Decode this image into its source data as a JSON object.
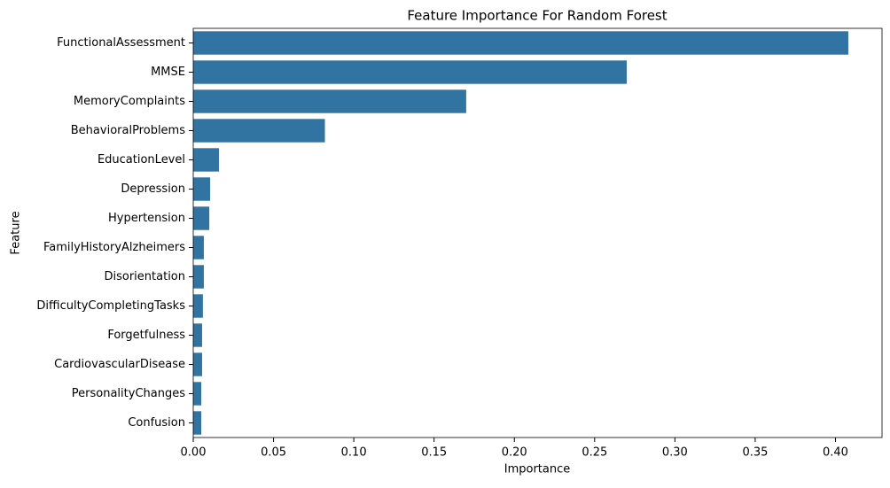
{
  "chart_data": {
    "type": "barh",
    "title": "Feature Importance For Random Forest",
    "x_label": "Importance",
    "y_label": "Feature",
    "categories": [
      "FunctionalAssessment",
      "MMSE",
      "MemoryComplaints",
      "BehavioralProblems",
      "EducationLevel",
      "Depression",
      "Hypertension",
      "FamilyHistoryAlzheimers",
      "Disorientation",
      "DifficultyCompletingTasks",
      "Forgetfulness",
      "CardiovascularDisease",
      "PersonalityChanges",
      "Confusion"
    ],
    "values": [
      0.408,
      0.27,
      0.17,
      0.082,
      0.016,
      0.0105,
      0.01,
      0.0066,
      0.0066,
      0.006,
      0.0055,
      0.0055,
      0.005,
      0.005
    ],
    "color": "#3274a1",
    "xlim": [
      0,
      0.429
    ],
    "xticks": [
      {
        "value": 0,
        "label": "0.00"
      },
      {
        "value": 0.05,
        "label": "0.05"
      },
      {
        "value": 0.1,
        "label": "0.10"
      },
      {
        "value": 0.15,
        "label": "0.15"
      },
      {
        "value": 0.2,
        "label": "0.20"
      },
      {
        "value": 0.25,
        "label": "0.25"
      },
      {
        "value": 0.3,
        "label": "0.30"
      },
      {
        "value": 0.35,
        "label": "0.35"
      },
      {
        "value": 0.4,
        "label": "0.40"
      }
    ],
    "grid": false
  }
}
